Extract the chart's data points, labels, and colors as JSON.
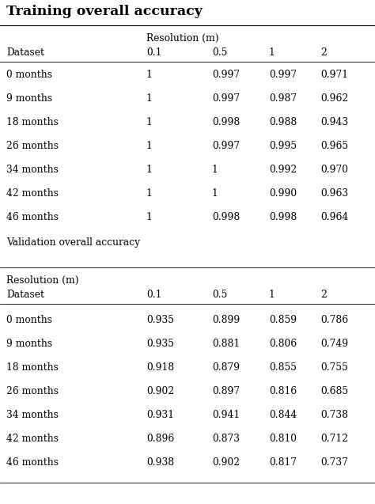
{
  "title": "Training overall accuracy",
  "section1_header_row1": "Resolution (m)",
  "section1_header_row2": [
    "Dataset",
    "0.1",
    "0.5",
    "1",
    "2"
  ],
  "section1_data": [
    [
      "0 months",
      "1",
      "0.997",
      "0.997",
      "0.971"
    ],
    [
      "9 months",
      "1",
      "0.997",
      "0.987",
      "0.962"
    ],
    [
      "18 months",
      "1",
      "0.998",
      "0.988",
      "0.943"
    ],
    [
      "26 months",
      "1",
      "0.997",
      "0.995",
      "0.965"
    ],
    [
      "34 months",
      "1",
      "1",
      "0.992",
      "0.970"
    ],
    [
      "42 months",
      "1",
      "1",
      "0.990",
      "0.963"
    ],
    [
      "46 months",
      "1",
      "0.998",
      "0.998",
      "0.964"
    ]
  ],
  "section1_footer": "Validation overall accuracy",
  "section2_header_row1": "Resolution (m)",
  "section2_header_row2": [
    "Dataset",
    "0.1",
    "0.5",
    "1",
    "2"
  ],
  "section2_data": [
    [
      "0 months",
      "0.935",
      "0.899",
      "0.859",
      "0.786"
    ],
    [
      "9 months",
      "0.935",
      "0.881",
      "0.806",
      "0.749"
    ],
    [
      "18 months",
      "0.918",
      "0.879",
      "0.855",
      "0.755"
    ],
    [
      "26 months",
      "0.902",
      "0.897",
      "0.816",
      "0.685"
    ],
    [
      "34 months",
      "0.931",
      "0.941",
      "0.844",
      "0.738"
    ],
    [
      "42 months",
      "0.896",
      "0.873",
      "0.810",
      "0.712"
    ],
    [
      "46 months",
      "0.938",
      "0.902",
      "0.817",
      "0.737"
    ]
  ],
  "bg_color": "#ffffff",
  "text_color": "#000000",
  "title_fontsize": 12.5,
  "body_fontsize": 8.8
}
